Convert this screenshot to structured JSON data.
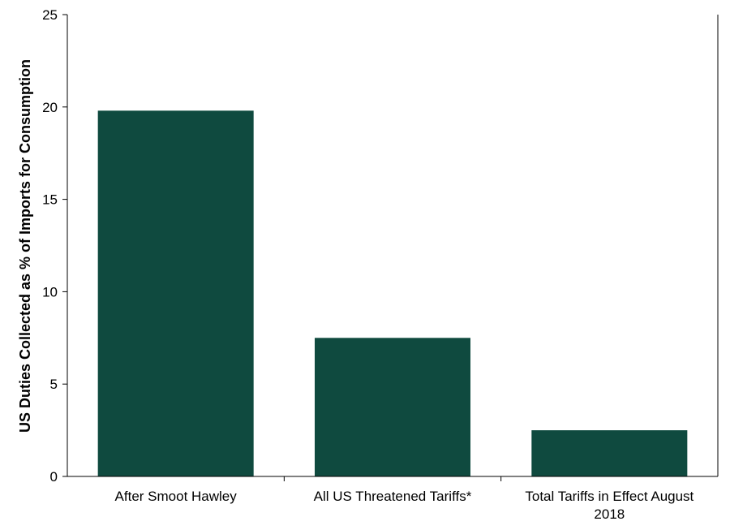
{
  "chart_data": {
    "type": "bar",
    "categories": [
      [
        "After Smoot Hawley"
      ],
      [
        "All US Threatened Tariffs*"
      ],
      [
        "Total Tariffs in Effect August",
        "2018"
      ]
    ],
    "values": [
      19.8,
      7.5,
      2.5
    ],
    "ylabel": "US Duties Collected as % of Imports for Consumption",
    "xlabel": "",
    "ylim": [
      0,
      25
    ],
    "yticks": [
      "0",
      "5",
      "10",
      "15",
      "20",
      "25"
    ],
    "grid": false,
    "bar_color": "#0f4a3f"
  }
}
